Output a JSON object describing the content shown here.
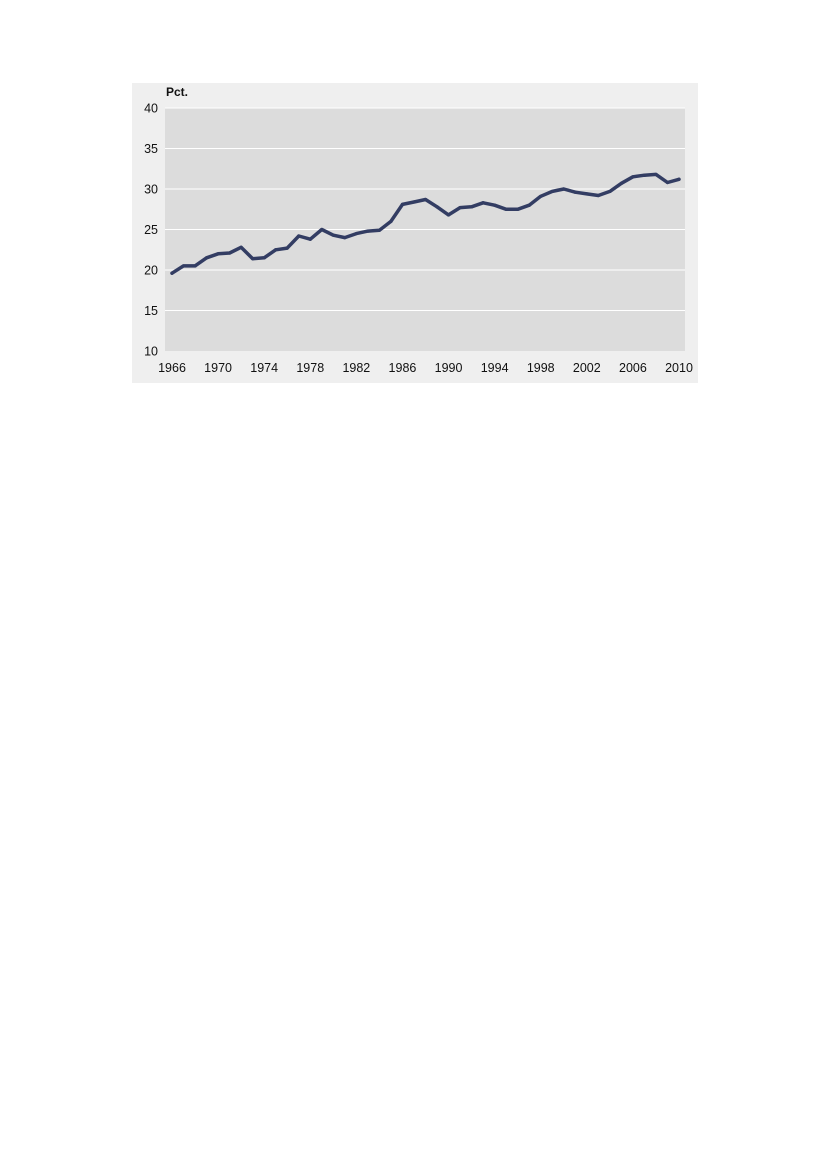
{
  "colors": {
    "page_background": "#ffffff",
    "panel_background": "#efefef",
    "plot_background": "#dcdcdc",
    "gridline": "#ffffff",
    "series_line": "#333d63"
  },
  "chart_data": {
    "type": "line",
    "title": "",
    "xlabel": "",
    "ylabel": "Pct.",
    "xlim": [
      1966,
      2010
    ],
    "ylim": [
      10,
      40
    ],
    "x_ticks": [
      1966,
      1970,
      1974,
      1978,
      1982,
      1986,
      1990,
      1994,
      1998,
      2002,
      2006,
      2010
    ],
    "y_ticks": [
      10,
      15,
      20,
      25,
      30,
      35,
      40
    ],
    "grid": "horizontal",
    "legend": "none",
    "series": [
      {
        "x": [
          1966,
          1967,
          1968,
          1969,
          1970,
          1971,
          1972,
          1973,
          1974,
          1975,
          1976,
          1977,
          1978,
          1979,
          1980,
          1981,
          1982,
          1983,
          1984,
          1985,
          1986,
          1987,
          1988,
          1989,
          1990,
          1991,
          1992,
          1993,
          1994,
          1995,
          1996,
          1997,
          1998,
          1999,
          2000,
          2001,
          2002,
          2003,
          2004,
          2005,
          2006,
          2007,
          2008,
          2009,
          2010
        ],
        "values": [
          19.6,
          20.5,
          20.5,
          21.5,
          22.0,
          22.1,
          22.8,
          21.4,
          21.5,
          22.5,
          22.7,
          24.2,
          23.8,
          25.0,
          24.3,
          24.0,
          24.5,
          24.8,
          24.9,
          26.0,
          28.1,
          28.4,
          28.7,
          27.8,
          26.8,
          27.7,
          27.8,
          28.3,
          28.0,
          27.5,
          27.5,
          28.0,
          29.1,
          29.7,
          30.0,
          29.6,
          29.4,
          29.2,
          29.7,
          30.7,
          31.5,
          31.7,
          31.8,
          30.8,
          31.2
        ]
      }
    ]
  }
}
